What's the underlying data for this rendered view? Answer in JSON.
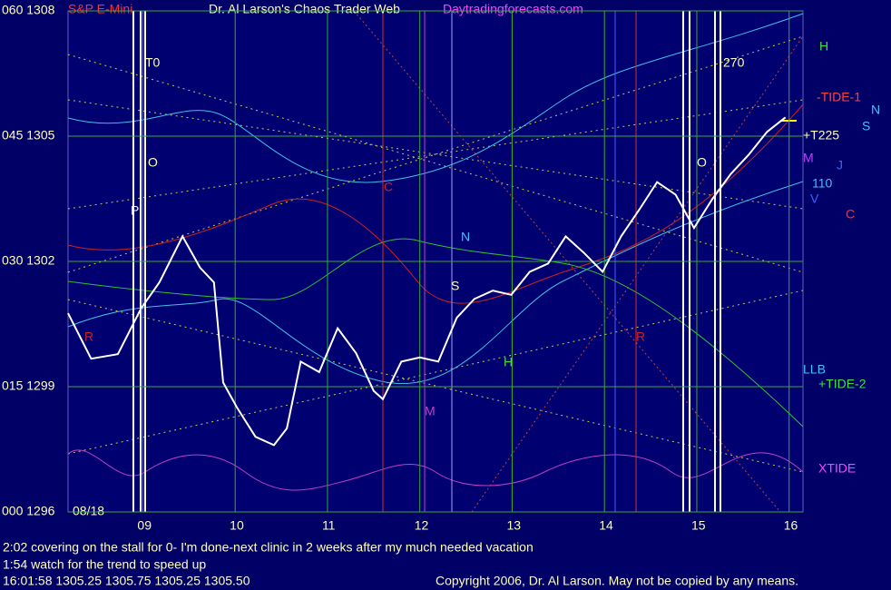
{
  "chart_data": {
    "type": "line",
    "symbol": "S&P E-Mini",
    "title": "Dr. Al Larson's Chaos Trader Web",
    "site": "Daytradingforecasts.com",
    "date": "08/18",
    "x": [
      8.19,
      8.44,
      8.73,
      8.98,
      9.18,
      9.43,
      9.62,
      9.77,
      9.87,
      10.02,
      10.22,
      10.42,
      10.56,
      10.71,
      10.91,
      11.11,
      11.31,
      11.5,
      11.6,
      11.8,
      12.0,
      12.2,
      12.4,
      12.59,
      12.79,
      12.99,
      13.19,
      13.39,
      13.58,
      13.78,
      13.98,
      14.18,
      14.38,
      14.57,
      14.77,
      14.97,
      15.17,
      15.37,
      15.56,
      15.76,
      15.96
    ],
    "values": [
      1300.76,
      1299.67,
      1299.78,
      1300.87,
      1301.5,
      1302.6,
      1301.85,
      1301.5,
      1299.1,
      1298.5,
      1297.8,
      1297.6,
      1298.0,
      1299.6,
      1299.35,
      1300.4,
      1299.8,
      1298.9,
      1298.7,
      1299.6,
      1299.7,
      1299.6,
      1300.65,
      1301.1,
      1301.3,
      1301.2,
      1301.75,
      1301.95,
      1302.6,
      1302.2,
      1301.75,
      1302.6,
      1303.25,
      1303.9,
      1303.6,
      1302.8,
      1303.5,
      1304.1,
      1304.55,
      1305.1,
      1305.45
    ],
    "color": "#ffffff",
    "xlim": [
      8.19,
      16.15
    ],
    "ylim": [
      1296,
      1308
    ],
    "xticks": [
      {
        "value": 9,
        "label": "09"
      },
      10,
      11,
      12,
      13,
      14,
      15,
      16
    ],
    "yticks": [
      {
        "value": 1296,
        "label": "000 1296"
      },
      {
        "value": 1299,
        "label": "015 1299"
      },
      {
        "value": 1302,
        "label": "030 1302"
      },
      {
        "value": 1305,
        "label": "045 1305"
      },
      {
        "value": 1308,
        "label": "060 1308"
      }
    ],
    "grid": true,
    "grid_color": "#3aa83a",
    "annotations": [
      "T0",
      "270",
      "O",
      "O",
      "P",
      "H",
      "-TIDE-1",
      "N",
      "S",
      "M",
      "J",
      "110",
      "V",
      "C",
      "LLB",
      "+TIDE-2",
      "XTIDE",
      "R",
      "R",
      "N",
      "S",
      "H",
      "M",
      "C",
      "+T225"
    ],
    "notes": [
      "2:02 covering on the stall for 0- I'm done-next clinic in 2 weeks after my much needed vacation",
      "1:54 watch for the trend to speed up",
      "16:01:58  1305.25 1305.75 1305.25 1305.50"
    ],
    "copyright": "Copyright 2006, Dr. Al Larson. May not be copied by any means."
  }
}
